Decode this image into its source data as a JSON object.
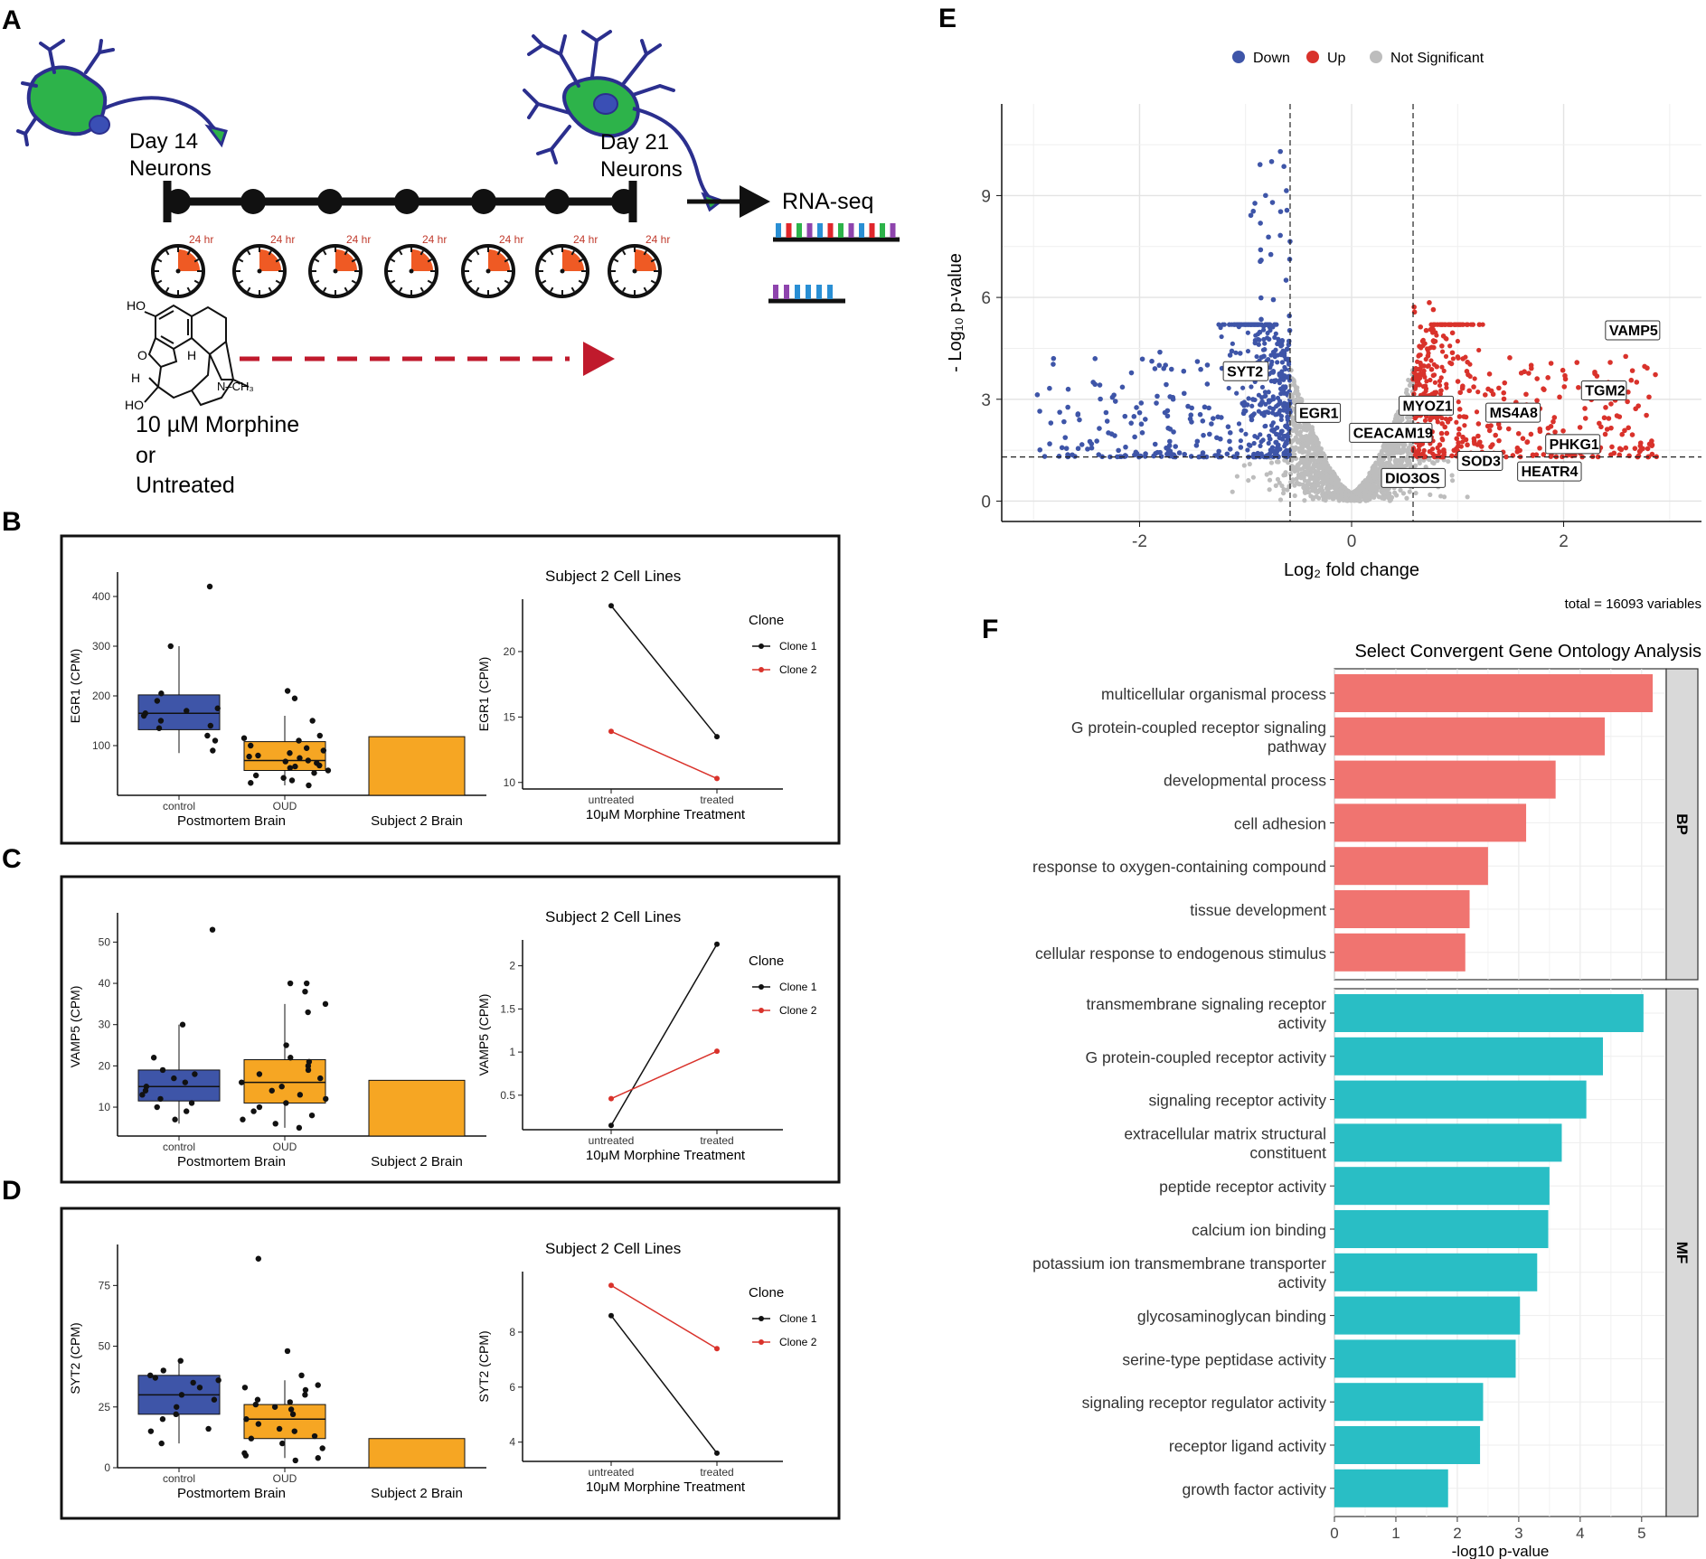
{
  "panel_letters": [
    "A",
    "B",
    "C",
    "D",
    "E",
    "F"
  ],
  "panelA": {
    "day14": [
      "Day 14",
      "Neurons"
    ],
    "day21": [
      "Day 21",
      "Neurons"
    ],
    "rnaseq": "RNA-seq",
    "clock_label": "24 hr",
    "clock_count": 7,
    "molecule_labels": {
      "ho_top": "HO",
      "o": "O",
      "h_left": "H",
      "h_mid": "H",
      "ho_bottom": "HO",
      "nch3": "N–CH₃"
    },
    "treatment": [
      "10 µM Morphine",
      "or",
      "Untreated"
    ],
    "colors": {
      "soma": "#2db34a",
      "outline": "#2b2f8e",
      "nucleus": "#3a4fb5",
      "timeline": "#111111",
      "clock_wedge": "#ef5a24",
      "arrow": "#c01a2c",
      "read_colors": [
        "#2a8fd4",
        "#e0262b",
        "#2db34a",
        "#8e44ad",
        "#111111"
      ]
    }
  },
  "panelB": {
    "box": {
      "type": "box",
      "ylabel": "EGR1 (CPM)",
      "yticks": [
        100,
        200,
        300,
        400
      ],
      "ylim": [
        0,
        440
      ],
      "categories": [
        "control",
        "OUD"
      ],
      "group_label": "Postmortem Brain",
      "bar_label": "Subject 2 Brain",
      "boxes": [
        {
          "name": "control",
          "color": "#3e55a8",
          "q1": 132,
          "median": 165,
          "q3": 202,
          "whisker_low": 85,
          "whisker_high": 300,
          "points": [
            420,
            300,
            205,
            190,
            175,
            170,
            165,
            160,
            150,
            140,
            135,
            120,
            110,
            90
          ]
        },
        {
          "name": "OUD",
          "color": "#f6a623",
          "q1": 50,
          "median": 70,
          "q3": 108,
          "whisker_low": 20,
          "whisker_high": 160,
          "points": [
            210,
            195,
            150,
            120,
            115,
            110,
            100,
            95,
            90,
            85,
            80,
            78,
            75,
            70,
            68,
            65,
            60,
            58,
            55,
            50,
            45,
            40,
            35,
            30,
            25,
            20
          ]
        }
      ],
      "bar_value": 118,
      "bar_color": "#f6a623"
    },
    "line": {
      "type": "line",
      "title": "Subject 2 Cell Lines",
      "ylabel": "EGR1 (CPM)",
      "xlabel": "10μM Morphine Treatment",
      "categories": [
        "untreated",
        "treated"
      ],
      "yticks": [
        10,
        15,
        20
      ],
      "ylim": [
        9.5,
        24
      ],
      "legend_title": "Clone",
      "series": [
        {
          "name": "Clone 1",
          "color": "#111111",
          "values": [
            23.5,
            13.5
          ]
        },
        {
          "name": "Clone 2",
          "color": "#d9322b",
          "values": [
            13.9,
            10.3
          ]
        }
      ]
    }
  },
  "panelC": {
    "box": {
      "type": "box",
      "ylabel": "VAMP5 (CPM)",
      "yticks": [
        10,
        20,
        30,
        40,
        50
      ],
      "ylim": [
        3,
        56
      ],
      "categories": [
        "control",
        "OUD"
      ],
      "group_label": "Postmortem Brain",
      "bar_label": "Subject 2 Brain",
      "boxes": [
        {
          "name": "control",
          "color": "#3e55a8",
          "q1": 11.5,
          "median": 15,
          "q3": 19,
          "whisker_low": 6,
          "whisker_high": 30,
          "points": [
            53,
            30,
            22,
            19,
            18,
            17,
            16,
            15,
            14,
            13,
            12,
            11,
            10,
            9,
            7
          ]
        },
        {
          "name": "OUD",
          "color": "#f6a623",
          "q1": 11,
          "median": 16,
          "q3": 21.5,
          "whisker_low": 5,
          "whisker_high": 35,
          "points": [
            40,
            40,
            38,
            35,
            33,
            25,
            22,
            21,
            20,
            19,
            18,
            17,
            16,
            15,
            14,
            13,
            12,
            11,
            10,
            9,
            8,
            7,
            6,
            5
          ]
        }
      ],
      "bar_value": 16.5,
      "bar_color": "#f6a623"
    },
    "line": {
      "type": "line",
      "title": "Subject 2 Cell Lines",
      "ylabel": "VAMP5 (CPM)",
      "xlabel": "10μM Morphine Treatment",
      "categories": [
        "untreated",
        "treated"
      ],
      "yticks": [
        0.5,
        1.0,
        1.5,
        2.0
      ],
      "ylim": [
        0.1,
        2.3
      ],
      "legend_title": "Clone",
      "series": [
        {
          "name": "Clone 1",
          "color": "#111111",
          "values": [
            0.15,
            2.25
          ]
        },
        {
          "name": "Clone 2",
          "color": "#d9322b",
          "values": [
            0.46,
            1.01
          ]
        }
      ]
    }
  },
  "panelD": {
    "box": {
      "type": "box",
      "ylabel": "SYT2 (CPM)",
      "yticks": [
        0,
        25,
        50,
        75
      ],
      "ylim": [
        0,
        90
      ],
      "categories": [
        "control",
        "OUD"
      ],
      "group_label": "Postmortem Brain",
      "bar_label": "Subject 2 Brain",
      "boxes": [
        {
          "name": "control",
          "color": "#3e55a8",
          "q1": 22,
          "median": 30,
          "q3": 38,
          "whisker_low": 10,
          "whisker_high": 44,
          "points": [
            44,
            40,
            38,
            37,
            36,
            35,
            33,
            30,
            28,
            25,
            22,
            20,
            16,
            15,
            10
          ]
        },
        {
          "name": "OUD",
          "color": "#f6a623",
          "q1": 12,
          "median": 20,
          "q3": 26,
          "whisker_low": 4,
          "whisker_high": 36,
          "points": [
            86,
            48,
            38,
            34,
            33,
            32,
            30,
            28,
            27,
            26,
            25,
            24,
            22,
            20,
            18,
            16,
            15,
            13,
            12,
            10,
            8,
            6,
            5,
            4,
            3
          ]
        }
      ],
      "bar_value": 12,
      "bar_color": "#f6a623"
    },
    "line": {
      "type": "line",
      "title": "Subject 2 Cell Lines",
      "ylabel": "SYT2 (CPM)",
      "xlabel": "10μM Morphine Treatment",
      "categories": [
        "untreated",
        "treated"
      ],
      "yticks": [
        4,
        6,
        8
      ],
      "ylim": [
        3.3,
        10.2
      ],
      "legend_title": "Clone",
      "series": [
        {
          "name": "Clone 1",
          "color": "#111111",
          "values": [
            8.6,
            3.6
          ]
        },
        {
          "name": "Clone 2",
          "color": "#d9322b",
          "values": [
            9.7,
            7.4
          ]
        }
      ]
    }
  },
  "panelE": {
    "chart_data": {
      "type": "scatter",
      "xlabel": "Log₂ fold change",
      "ylabel": "- Log₁₀ p-value",
      "xticks": [
        -2,
        0,
        2
      ],
      "yticks": [
        0,
        3,
        6,
        9
      ],
      "xlim": [
        -3.3,
        3.3
      ],
      "ylim": [
        -0.6,
        11.7
      ],
      "fc_threshold": 0.58,
      "p_threshold": 1.3,
      "legend": [
        {
          "name": "Down",
          "color": "#3e55a8"
        },
        {
          "name": "Up",
          "color": "#d9322b"
        },
        {
          "name": "Not Significant",
          "color": "#bdbdbd"
        }
      ],
      "caption": "total = 16093 variables",
      "labeled_genes": [
        {
          "gene": "VAMP5",
          "x": 2.48,
          "y": 4.3
        },
        {
          "gene": "TGM2",
          "x": 2.1,
          "y": 2.9
        },
        {
          "gene": "SYT2",
          "x": -0.92,
          "y": 3.2
        },
        {
          "gene": "EGR1",
          "x": -0.58,
          "y": 2.4
        },
        {
          "gene": "MYOZ1",
          "x": 0.55,
          "y": 2.4
        },
        {
          "gene": "MS4A8",
          "x": 1.25,
          "y": 2.3
        },
        {
          "gene": "PHKG1",
          "x": 1.95,
          "y": 1.8
        },
        {
          "gene": "CEACAM19",
          "x": 0.1,
          "y": 1.6
        },
        {
          "gene": "SOD3",
          "x": 1.0,
          "y": 1.25
        },
        {
          "gene": "HEATR4",
          "x": 1.6,
          "y": 1.1
        },
        {
          "gene": "DIO3OS",
          "x": 0.35,
          "y": 0.8
        }
      ]
    }
  },
  "panelF": {
    "chart_data": {
      "type": "bar",
      "orientation": "horizontal",
      "title": "Select Convergent Gene Ontology Analysis",
      "xlabel": "-log10 p-value",
      "xticks": [
        0,
        1,
        2,
        3,
        4,
        5
      ],
      "xlim": [
        0,
        5.4
      ],
      "facets": [
        {
          "name": "BP",
          "color": "#f07470",
          "bars": [
            {
              "label": [
                "multicellular organismal process"
              ],
              "value": 5.18
            },
            {
              "label": [
                "G protein-coupled receptor signaling",
                "pathway"
              ],
              "value": 4.4
            },
            {
              "label": [
                "developmental process"
              ],
              "value": 3.6
            },
            {
              "label": [
                "cell adhesion"
              ],
              "value": 3.12
            },
            {
              "label": [
                "response to oxygen-containing compound"
              ],
              "value": 2.5
            },
            {
              "label": [
                "tissue development"
              ],
              "value": 2.2
            },
            {
              "label": [
                "cellular response to endogenous stimulus"
              ],
              "value": 2.13
            }
          ]
        },
        {
          "name": "MF",
          "color": "#29bec5",
          "bars": [
            {
              "label": [
                "transmembrane signaling receptor",
                "activity"
              ],
              "value": 5.03
            },
            {
              "label": [
                "G protein-coupled receptor activity"
              ],
              "value": 4.37
            },
            {
              "label": [
                "signaling receptor activity"
              ],
              "value": 4.1
            },
            {
              "label": [
                "extracellular matrix structural",
                "constituent"
              ],
              "value": 3.7
            },
            {
              "label": [
                "peptide receptor activity"
              ],
              "value": 3.5
            },
            {
              "label": [
                "calcium ion binding"
              ],
              "value": 3.48
            },
            {
              "label": [
                "potassium ion transmembrane transporter",
                "activity"
              ],
              "value": 3.3
            },
            {
              "label": [
                "glycosaminoglycan binding"
              ],
              "value": 3.02
            },
            {
              "label": [
                "serine-type peptidase activity"
              ],
              "value": 2.95
            },
            {
              "label": [
                "signaling receptor regulator activity"
              ],
              "value": 2.42
            },
            {
              "label": [
                "receptor ligand activity"
              ],
              "value": 2.37
            },
            {
              "label": [
                "growth factor activity"
              ],
              "value": 1.85
            }
          ]
        }
      ]
    }
  }
}
